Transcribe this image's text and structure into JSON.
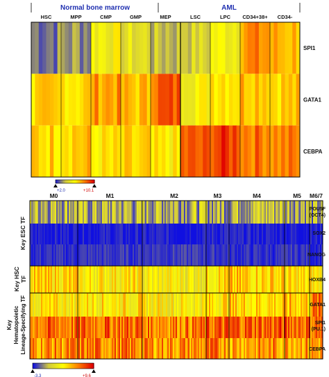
{
  "chart_data": [
    {
      "type": "heatmap",
      "title": "",
      "group_labels": [
        {
          "name": "Normal bone marrow",
          "color": "#1f2fb0"
        },
        {
          "name": "AML",
          "color": "#1f2fb0"
        }
      ],
      "columns": [
        "HSC",
        "MPP",
        "CMP",
        "GMP",
        "MEP",
        "LSC",
        "LPC",
        "CD34+38+",
        "CD34-"
      ],
      "rows": [
        "SPI1",
        "GATA1",
        "CEBPA"
      ],
      "values": [
        [
          0.15,
          0.18,
          0.45,
          0.35,
          0.25,
          0.3,
          0.45,
          0.72,
          0.65
        ],
        [
          0.55,
          0.58,
          0.7,
          0.62,
          0.82,
          0.48,
          0.6,
          0.66,
          0.6
        ],
        [
          0.6,
          0.62,
          0.52,
          0.55,
          0.5,
          0.8,
          0.88,
          0.78,
          0.74
        ]
      ],
      "scale": {
        "min_label": "+2.0",
        "max_label": "+10.1"
      },
      "colors": [
        "#2020d0",
        "#d0c840",
        "#ffff00",
        "#ff8000",
        "#e00000"
      ]
    },
    {
      "type": "heatmap",
      "title": "",
      "columns": [
        "M0",
        "M1",
        "M2",
        "M3",
        "M4",
        "M5",
        "M6/7"
      ],
      "row_groups": [
        "Key ESC TF",
        "Key HSC TF",
        "Key Hematopoietic Lineage-Specifying TF"
      ],
      "rows": [
        "POU5F (OCT4)",
        "SOX2",
        "NANOG",
        "HOXB4",
        "GATA1",
        "SPI1 (PU.1)",
        "CEBPA"
      ],
      "values": [
        [
          0.25,
          0.22,
          0.24,
          0.23,
          0.26,
          0.25,
          0.2
        ],
        [
          0.02,
          0.02,
          0.02,
          0.03,
          0.02,
          0.02,
          0.02
        ],
        [
          0.04,
          0.05,
          0.06,
          0.05,
          0.04,
          0.05,
          0.04
        ],
        [
          0.55,
          0.5,
          0.45,
          0.55,
          0.58,
          0.52,
          0.5
        ],
        [
          0.5,
          0.52,
          0.48,
          0.55,
          0.58,
          0.62,
          0.75
        ],
        [
          0.78,
          0.8,
          0.76,
          0.8,
          0.82,
          0.82,
          0.8
        ],
        [
          0.72,
          0.75,
          0.72,
          0.74,
          0.7,
          0.72,
          0.7
        ]
      ],
      "scale": {
        "min_label": "-3.3",
        "max_label": "+9.6"
      },
      "colors": [
        "#1010e0",
        "#d0c840",
        "#ffff00",
        "#ff8000",
        "#e00000"
      ]
    }
  ]
}
